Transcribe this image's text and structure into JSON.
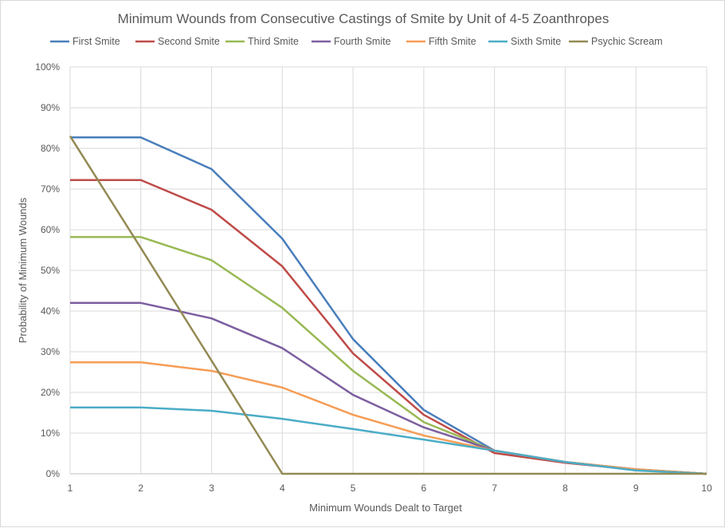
{
  "chart_data": {
    "type": "line",
    "title": "Minimum Wounds from Consecutive Castings of Smite by Unit of 4-5 Zoanthropes",
    "xlabel": "Minimum Wounds Dealt to Target",
    "ylabel": "Probability of Minimum Wounds",
    "x": [
      1,
      2,
      3,
      4,
      5,
      6,
      7,
      8,
      9,
      10
    ],
    "xlim": [
      1,
      10
    ],
    "ylim": [
      0,
      100
    ],
    "yticks": [
      0,
      10,
      20,
      30,
      40,
      50,
      60,
      70,
      80,
      90,
      100
    ],
    "ytick_labels": [
      "0%",
      "10%",
      "20%",
      "30%",
      "40%",
      "50%",
      "60%",
      "70%",
      "80%",
      "90%",
      "100%"
    ],
    "xtick_labels": [
      "1",
      "2",
      "3",
      "4",
      "5",
      "6",
      "7",
      "8",
      "9",
      "10"
    ],
    "grid": true,
    "legend_position": "top",
    "series": [
      {
        "name": "First Smite",
        "color": "#4a7ebb",
        "values": [
          82.7,
          82.7,
          74.9,
          57.8,
          33.1,
          15.7,
          5.7,
          2.9,
          1.0,
          0
        ]
      },
      {
        "name": "Second Smite",
        "color": "#be4b48",
        "values": [
          72.2,
          72.2,
          64.9,
          51.0,
          29.6,
          14.5,
          5.1,
          2.7,
          1.0,
          0
        ]
      },
      {
        "name": "Third Smite",
        "color": "#98b954",
        "values": [
          58.2,
          58.2,
          52.5,
          40.8,
          25.3,
          12.7,
          5.7,
          2.9,
          1.1,
          0
        ]
      },
      {
        "name": "Fourth Smite",
        "color": "#7d5fa0",
        "values": [
          42.0,
          42.0,
          38.2,
          30.9,
          19.4,
          11.4,
          5.7,
          2.9,
          1.1,
          0
        ]
      },
      {
        "name": "Fifth Smite",
        "color": "#f59d56",
        "values": [
          27.4,
          27.4,
          25.3,
          21.2,
          14.5,
          9.4,
          5.7,
          2.9,
          1.1,
          0
        ]
      },
      {
        "name": "Sixth Smite",
        "color": "#4bacc6",
        "values": [
          16.3,
          16.3,
          15.5,
          13.5,
          11.0,
          8.4,
          5.7,
          2.9,
          0.8,
          0
        ]
      },
      {
        "name": "Psychic Scream",
        "color": "#948a54",
        "values": [
          83.0,
          55.5,
          27.8,
          0,
          0,
          0,
          0,
          0,
          0,
          0
        ]
      }
    ]
  }
}
